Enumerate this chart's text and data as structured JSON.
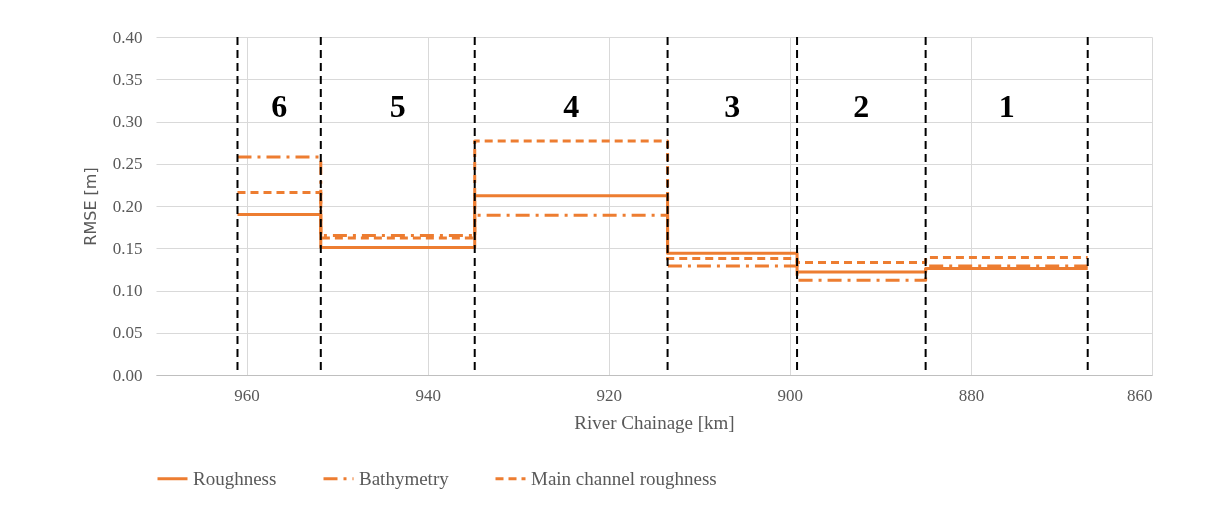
{
  "chart_data": {
    "type": "step",
    "xlabel": "River Chainage [km]",
    "ylabel": "RMSE [m]",
    "x": [
      961,
      951.8,
      934.8,
      913.5,
      899.2,
      885,
      867.1
    ],
    "series": [
      {
        "name": "Roughness",
        "color": "#ed7d31",
        "line_style": "solid",
        "values": [
          0.19,
          0.151,
          0.212,
          0.144,
          0.122,
          0.126,
          0.126
        ]
      },
      {
        "name": "Bathymetry",
        "color": "#ed7d31",
        "line_style": "dashdot",
        "values": [
          0.258,
          0.165,
          0.189,
          0.129,
          0.112,
          0.129,
          0.129
        ]
      },
      {
        "name": "Main channel roughness",
        "color": "#ed7d31",
        "line_style": "dashed",
        "values": [
          0.216,
          0.162,
          0.277,
          0.138,
          0.133,
          0.139,
          0.139
        ]
      }
    ],
    "xlim": [
      970,
      860
    ],
    "xticks": [
      960,
      940,
      920,
      900,
      880,
      860
    ],
    "ylim": [
      0,
      0.4
    ],
    "yticks": [
      {
        "value": 0,
        "label": "0.00"
      },
      {
        "value": 0.05,
        "label": "0.05"
      },
      {
        "value": 0.1,
        "label": "0.10"
      },
      {
        "value": 0.15,
        "label": "0.15"
      },
      {
        "value": 0.2,
        "label": "0.20"
      },
      {
        "value": 0.25,
        "label": "0.25"
      },
      {
        "value": 0.3,
        "label": "0.30"
      },
      {
        "value": 0.35,
        "label": "0.35"
      },
      {
        "value": 0.4,
        "label": "0.40"
      }
    ],
    "ref_lines": [
      {
        "axis": "x",
        "value": 961,
        "color": "#000000",
        "line_style": "dashed"
      },
      {
        "axis": "x",
        "value": 951.8,
        "color": "#000000",
        "line_style": "dashed"
      },
      {
        "axis": "x",
        "value": 934.8,
        "color": "#000000",
        "line_style": "dashed"
      },
      {
        "axis": "x",
        "value": 913.5,
        "color": "#000000",
        "line_style": "dashed"
      },
      {
        "axis": "x",
        "value": 899.2,
        "color": "#000000",
        "line_style": "dashed"
      },
      {
        "axis": "x",
        "value": 885,
        "color": "#000000",
        "line_style": "dashed"
      },
      {
        "axis": "x",
        "value": 867.1,
        "color": "#000000",
        "line_style": "dashed"
      }
    ],
    "annotations": [
      "6",
      "5",
      "4",
      "3",
      "2",
      "1"
    ],
    "grid": true,
    "legend": "bottom"
  }
}
